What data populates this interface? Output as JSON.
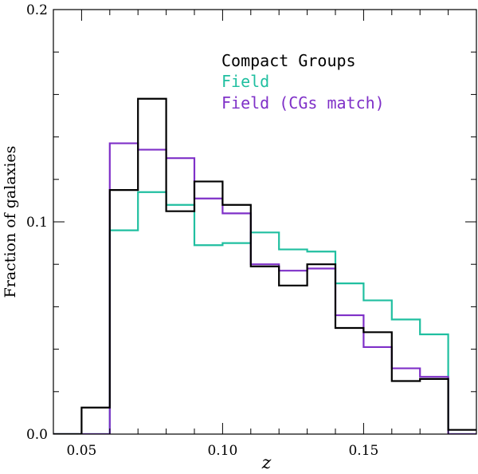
{
  "chart_data": {
    "type": "histogram",
    "title": "",
    "xlabel": "z",
    "ylabel": "Fraction of galaxies",
    "xlim": [
      0.04,
      0.19
    ],
    "ylim": [
      0.0,
      0.2
    ],
    "xticks": [
      0.05,
      0.1,
      0.15
    ],
    "xtick_labels": [
      "0.05",
      "0.10",
      "0.15"
    ],
    "yticks": [
      0.0,
      0.1,
      0.2
    ],
    "ytick_labels": [
      "0.0",
      "0.1",
      "0.2"
    ],
    "bin_edges": [
      0.04,
      0.05,
      0.06,
      0.07,
      0.08,
      0.09,
      0.1,
      0.11,
      0.12,
      0.13,
      0.14,
      0.15,
      0.16,
      0.17,
      0.18,
      0.19
    ],
    "legend_position": "top-right",
    "series": [
      {
        "name": "Compact Groups",
        "color": "#000000",
        "values": [
          0.0,
          0.0125,
          0.115,
          0.158,
          0.105,
          0.119,
          0.108,
          0.079,
          0.07,
          0.08,
          0.05,
          0.048,
          0.025,
          0.026,
          0.002
        ]
      },
      {
        "name": "Field",
        "color": "#20BFA0",
        "values": [
          0.0,
          0.0,
          0.096,
          0.114,
          0.108,
          0.089,
          0.09,
          0.095,
          0.087,
          0.086,
          0.071,
          0.063,
          0.054,
          0.047,
          0.0
        ]
      },
      {
        "name": "Field (CGs match)",
        "color": "#7F30C8",
        "values": [
          0.0,
          0.0,
          0.137,
          0.134,
          0.13,
          0.111,
          0.104,
          0.08,
          0.077,
          0.078,
          0.056,
          0.041,
          0.031,
          0.027,
          0.0
        ]
      }
    ]
  }
}
